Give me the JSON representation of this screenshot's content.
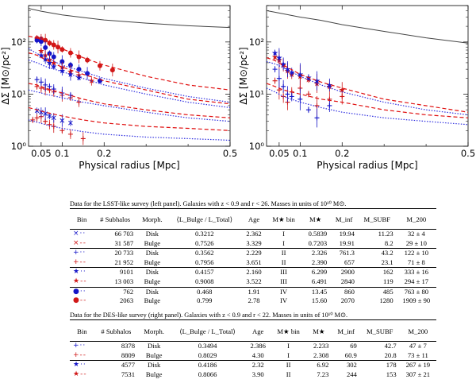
{
  "chart_data": [
    {
      "type": "line",
      "panel": "left",
      "xlabel": "Physical radius [Mpc]",
      "ylabel": "ΔΣ [M⊙/pc²]",
      "xscale": "linear",
      "yscale": "log",
      "xlim": [
        0.02,
        0.5
      ],
      "ylim": [
        1,
        500
      ],
      "xticks": [
        "0.05",
        "0.1",
        "0.2",
        "0.5"
      ],
      "yticks": [
        "10⁰",
        "10¹",
        "10²"
      ],
      "series": [
        {
          "name": "model-total",
          "color": "#444444",
          "style": "solid",
          "x": [
            0.02,
            0.05,
            0.1,
            0.15,
            0.2,
            0.3,
            0.4,
            0.5
          ],
          "y": [
            440,
            390,
            330,
            295,
            265,
            230,
            205,
            190
          ]
        },
        {
          "name": "bin-IV-bulge-points",
          "color": "#d01818",
          "marker": "circle",
          "x": [
            0.04,
            0.05,
            0.06,
            0.07,
            0.08,
            0.09,
            0.1,
            0.12,
            0.14,
            0.16,
            0.19,
            0.22
          ],
          "y": [
            118,
            115,
            108,
            95,
            88,
            80,
            72,
            62,
            52,
            45,
            35,
            29
          ]
        },
        {
          "name": "bin-IV-disk-points",
          "color": "#1515c8",
          "marker": "circle",
          "x": [
            0.04,
            0.05,
            0.06,
            0.07,
            0.08,
            0.1,
            0.12,
            0.14,
            0.16,
            0.19
          ],
          "y": [
            108,
            102,
            78,
            60,
            52,
            42,
            36,
            30,
            25,
            18
          ]
        },
        {
          "name": "bin-III-bulge-points",
          "color": "#d01818",
          "marker": "star",
          "x": [
            0.05,
            0.06,
            0.07,
            0.08,
            0.1,
            0.12,
            0.14,
            0.17
          ],
          "y": [
            68,
            56,
            46,
            40,
            33,
            27,
            23,
            18
          ]
        },
        {
          "name": "bin-III-disk-points",
          "color": "#1515c8",
          "marker": "star",
          "x": [
            0.05,
            0.06,
            0.07,
            0.08,
            0.1,
            0.12,
            0.14
          ],
          "y": [
            56,
            47,
            40,
            34,
            28,
            24,
            21
          ]
        },
        {
          "name": "bin-II-bulge-points",
          "color": "#d01818",
          "marker": "plus",
          "x": [
            0.04,
            0.05,
            0.06,
            0.07,
            0.08,
            0.1,
            0.12,
            0.14
          ],
          "y": [
            14,
            13,
            12.5,
            12,
            11,
            9.5,
            8.5,
            7
          ]
        },
        {
          "name": "bin-II-disk-points",
          "color": "#1515c8",
          "marker": "plus",
          "x": [
            0.04,
            0.05,
            0.06,
            0.07,
            0.08,
            0.1,
            0.12
          ],
          "y": [
            19,
            17,
            15,
            14,
            12.5,
            10.5,
            9.5
          ]
        },
        {
          "name": "bin-I-bulge-points",
          "color": "#d01818",
          "marker": "plus",
          "x": [
            0.03,
            0.04,
            0.05,
            0.06,
            0.07,
            0.08,
            0.1,
            0.12,
            0.15
          ],
          "y": [
            3.2,
            3.5,
            3.7,
            3.0,
            2.6,
            2.4,
            2.0,
            1.7,
            1.4
          ]
        },
        {
          "name": "bin-I-disk-points",
          "color": "#1515c8",
          "marker": "cross",
          "x": [
            0.04,
            0.05,
            0.06,
            0.07,
            0.08,
            0.1,
            0.12
          ],
          "y": [
            4.8,
            4.5,
            4.2,
            3.8,
            3.5,
            3.1,
            2.8
          ]
        },
        {
          "name": "model-IV-bulge",
          "color": "#e01010",
          "style": "dashed",
          "x": [
            0.02,
            0.04,
            0.06,
            0.1,
            0.15,
            0.2,
            0.3,
            0.4,
            0.5
          ],
          "y": [
            130,
            118,
            108,
            74,
            50,
            36,
            22,
            15,
            12
          ]
        },
        {
          "name": "model-IV-disk",
          "color": "#3030e0",
          "style": "dotted",
          "x": [
            0.02,
            0.04,
            0.06,
            0.1,
            0.15,
            0.2,
            0.3,
            0.4,
            0.5
          ],
          "y": [
            75,
            60,
            50,
            36,
            27,
            20,
            13,
            9,
            7
          ]
        },
        {
          "name": "model-III-bulge",
          "color": "#e01010",
          "style": "dashed",
          "x": [
            0.02,
            0.04,
            0.06,
            0.1,
            0.15,
            0.2,
            0.3,
            0.4,
            0.5
          ],
          "y": [
            62,
            56,
            46,
            33,
            24,
            18,
            12,
            8,
            6.5
          ]
        },
        {
          "name": "model-III-disk",
          "color": "#3030e0",
          "style": "dotted",
          "x": [
            0.02,
            0.04,
            0.06,
            0.1,
            0.15,
            0.2,
            0.3,
            0.4,
            0.5
          ],
          "y": [
            45,
            40,
            34,
            27,
            20,
            15,
            10,
            7,
            5.5
          ]
        },
        {
          "name": "model-II-bulge",
          "color": "#e01010",
          "style": "dashed",
          "x": [
            0.02,
            0.04,
            0.06,
            0.1,
            0.15,
            0.2,
            0.3,
            0.4,
            0.5
          ],
          "y": [
            16,
            15,
            13,
            10.5,
            8,
            6.5,
            5,
            4,
            3.5
          ]
        },
        {
          "name": "model-II-disk",
          "color": "#3030e0",
          "style": "dotted",
          "x": [
            0.02,
            0.04,
            0.06,
            0.1,
            0.15,
            0.2,
            0.3,
            0.4,
            0.5
          ],
          "y": [
            12,
            11,
            10,
            8.5,
            7,
            6,
            4.5,
            3.5,
            3
          ]
        },
        {
          "name": "model-I-bulge",
          "color": "#e01010",
          "style": "dashed",
          "x": [
            0.02,
            0.04,
            0.06,
            0.1,
            0.15,
            0.2,
            0.3,
            0.4,
            0.5
          ],
          "y": [
            5.5,
            5,
            4.5,
            3.8,
            3.2,
            2.8,
            2.4,
            2.2,
            2.0
          ]
        },
        {
          "name": "model-I-disk",
          "color": "#3030e0",
          "style": "dotted",
          "x": [
            0.02,
            0.04,
            0.06,
            0.1,
            0.15,
            0.2,
            0.3,
            0.4,
            0.5
          ],
          "y": [
            3.2,
            2.9,
            2.6,
            2.2,
            1.9,
            1.7,
            1.5,
            1.4,
            1.3
          ]
        }
      ]
    },
    {
      "type": "line",
      "panel": "right",
      "xlabel": "Physical radius [Mpc]",
      "ylabel": "ΔΣ [M⊙/pc²]",
      "xscale": "linear",
      "yscale": "log",
      "xlim": [
        0.02,
        0.5
      ],
      "ylim": [
        1,
        500
      ],
      "xticks": [
        "0.05",
        "0.1",
        "0.2",
        "0.5"
      ],
      "yticks": [
        "10⁰",
        "10¹",
        "10²"
      ],
      "series": [
        {
          "name": "model-total",
          "color": "#444444",
          "style": "solid",
          "x": [
            0.02,
            0.05,
            0.1,
            0.15,
            0.2,
            0.3,
            0.4,
            0.5
          ],
          "y": [
            400,
            360,
            300,
            260,
            215,
            160,
            120,
            95
          ]
        },
        {
          "name": "bulge-III-points",
          "color": "#d01818",
          "marker": "star",
          "x": [
            0.04,
            0.05,
            0.06,
            0.07,
            0.08,
            0.1,
            0.12,
            0.14,
            0.17,
            0.2
          ],
          "y": [
            52,
            45,
            36,
            28,
            24,
            22,
            19,
            16,
            14,
            12
          ]
        },
        {
          "name": "disk-III-points",
          "color": "#1515c8",
          "marker": "star",
          "x": [
            0.04,
            0.05,
            0.06,
            0.07,
            0.08,
            0.1,
            0.12,
            0.14,
            0.17
          ],
          "y": [
            62,
            50,
            38,
            30,
            26,
            24,
            21,
            18,
            15
          ]
        },
        {
          "name": "bulge-II-points",
          "color": "#d01818",
          "marker": "plus",
          "x": [
            0.04,
            0.05,
            0.06,
            0.07,
            0.08,
            0.1,
            0.12,
            0.14,
            0.17,
            0.2
          ],
          "y": [
            18,
            12,
            9,
            7,
            11,
            13,
            10,
            6,
            8,
            9
          ]
        },
        {
          "name": "disk-II-points",
          "color": "#1515c8",
          "marker": "plus",
          "x": [
            0.04,
            0.05,
            0.06,
            0.07,
            0.08,
            0.1,
            0.12,
            0.14,
            0.17
          ],
          "y": [
            30,
            20,
            14,
            10,
            9,
            8,
            5,
            3.5,
            6
          ]
        },
        {
          "name": "model-III-bulge",
          "color": "#e01010",
          "style": "dashed",
          "x": [
            0.02,
            0.04,
            0.06,
            0.1,
            0.15,
            0.2,
            0.3,
            0.4,
            0.5
          ],
          "y": [
            50,
            44,
            36,
            24,
            17,
            13,
            8,
            6,
            4.5
          ]
        },
        {
          "name": "model-III-disk",
          "color": "#3030e0",
          "style": "dotted",
          "x": [
            0.02,
            0.04,
            0.06,
            0.1,
            0.15,
            0.2,
            0.3,
            0.4,
            0.5
          ],
          "y": [
            42,
            38,
            32,
            22,
            15,
            11,
            7,
            5,
            4
          ]
        },
        {
          "name": "model-II-bulge",
          "color": "#e01010",
          "style": "dashed",
          "x": [
            0.02,
            0.04,
            0.06,
            0.1,
            0.15,
            0.2,
            0.3,
            0.4,
            0.5
          ],
          "y": [
            16,
            14,
            12,
            10,
            8,
            7,
            5,
            4,
            3.5
          ]
        },
        {
          "name": "model-II-disk",
          "color": "#3030e0",
          "style": "dotted",
          "x": [
            0.02,
            0.04,
            0.06,
            0.1,
            0.15,
            0.2,
            0.3,
            0.4,
            0.5
          ],
          "y": [
            13,
            11,
            9,
            7,
            5.5,
            4.5,
            3.5,
            3,
            2.6
          ]
        }
      ]
    }
  ],
  "lsst_table": {
    "caption": "Data for the LSST-like survey (left panel). Galaxies with z < 0.9 and r < 26. Masses in units of 10¹⁰ M⊙.",
    "headers": [
      "Bin",
      "# Subhalos",
      "Morph.",
      "⟨L_Bulge / L_Total⟩",
      "Age",
      "M★ bin",
      "M★",
      "M_inf",
      "M_SUBF",
      "M_200"
    ],
    "rows": [
      [
        "×··",
        "66 703",
        "Disk",
        "0.3212",
        "2.362",
        "I",
        "0.5839",
        "19.94",
        "11.23",
        "32 ± 4"
      ],
      [
        "×--",
        "31 587",
        "Bulge",
        "0.7526",
        "3.329",
        "I",
        "0.7203",
        "19.91",
        "8.2",
        "29 ± 10"
      ],
      [
        "+··",
        "20 733",
        "Disk",
        "0.3562",
        "2.229",
        "II",
        "2.326",
        "761.3",
        "43.2",
        "122 ± 10"
      ],
      [
        "+--",
        "21 952",
        "Bulge",
        "0.7956",
        "3.651",
        "II",
        "2.390",
        "657",
        "23.1",
        "71 ± 8"
      ],
      [
        "★··",
        "9101",
        "Disk",
        "0.4157",
        "2.160",
        "III",
        "6.299",
        "2900",
        "162",
        "333 ± 16"
      ],
      [
        "★--",
        "13 003",
        "Bulge",
        "0.9008",
        "3.522",
        "III",
        "6.491",
        "2840",
        "119",
        "294 ± 17"
      ],
      [
        "●··",
        "762",
        "Disk",
        "0.468",
        "1.91",
        "IV",
        "13.45",
        "860",
        "485",
        "763 ± 80"
      ],
      [
        "●--",
        "2063",
        "Bulge",
        "0.799",
        "2.78",
        "IV",
        "15.60",
        "2070",
        "1280",
        "1909 ± 90"
      ]
    ]
  },
  "des_table": {
    "caption": "Data for the DES-like survey (right panel). Galaxies with z < 0.9 and r < 22. Masses in units of 10¹⁰ M⊙.",
    "headers": [
      "Bin",
      "# Subhalos",
      "Morph.",
      "⟨L_Bulge / L_Total⟩",
      "Age",
      "M★ bin",
      "M★",
      "M_inf",
      "M_SUBF",
      "M_200"
    ],
    "rows": [
      [
        "+··",
        "8378",
        "Disk",
        "0.3494",
        "2.386",
        "I",
        "2.233",
        "69",
        "42.7",
        "47 ± 7"
      ],
      [
        "+--",
        "8809",
        "Bulge",
        "0.8029",
        "4.30",
        "I",
        "2.308",
        "60.9",
        "20.8",
        "73 ± 11"
      ],
      [
        "★··",
        "4577",
        "Disk",
        "0.4186",
        "2.32",
        "II",
        "6.92",
        "302",
        "178",
        "267 ± 19"
      ],
      [
        "★--",
        "7531",
        "Bulge",
        "0.8066",
        "3.90",
        "II",
        "7.23",
        "244",
        "153",
        "307 ± 21"
      ]
    ]
  },
  "colors": {
    "red": "#d01818",
    "blue": "#1515c8",
    "grey": "#444444"
  }
}
